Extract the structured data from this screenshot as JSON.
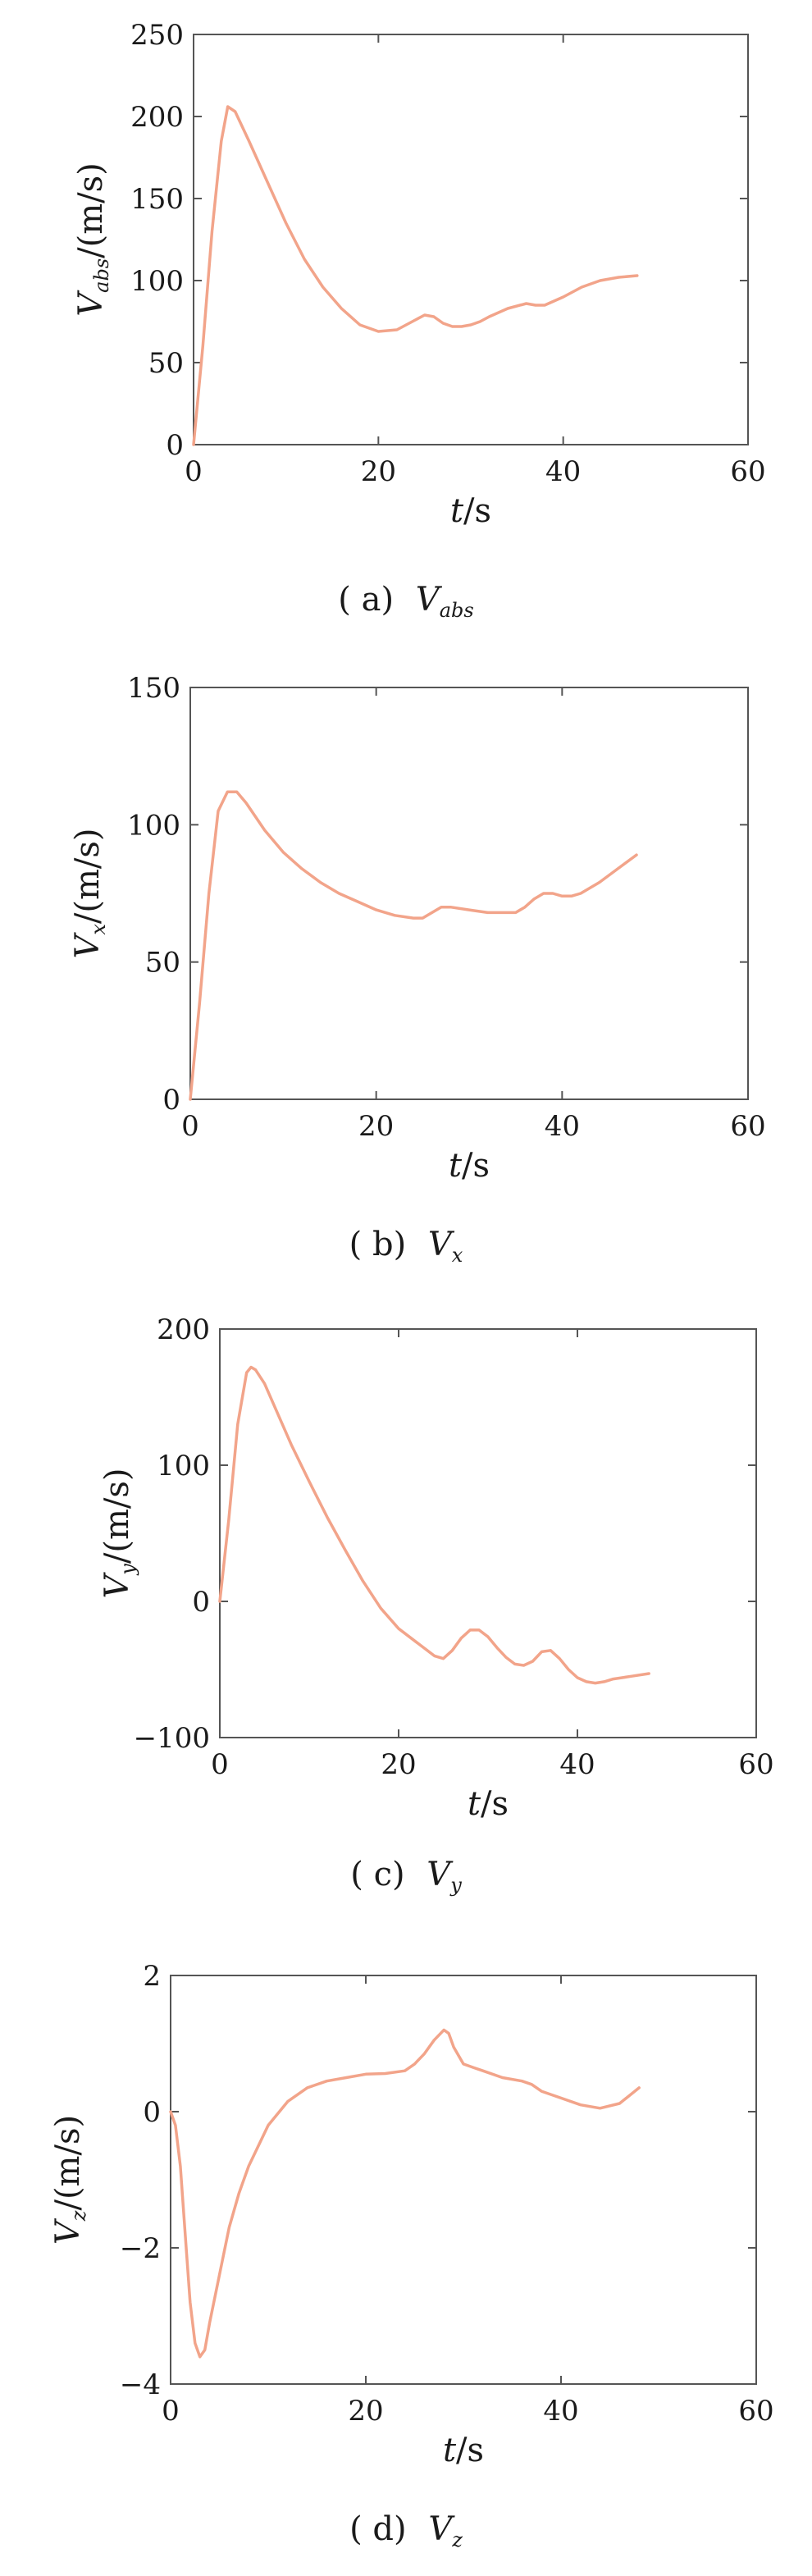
{
  "figure": {
    "line_color": "#f2a48a",
    "axis_color": "#555555"
  },
  "chart_data": [
    {
      "id": "a",
      "type": "line",
      "caption": {
        "label": "( a)",
        "var": "V",
        "sub": "abs"
      },
      "xlabel": {
        "var": "t",
        "unit": "/s"
      },
      "ylabel": {
        "var": "V",
        "sub": "abs",
        "unit": "/(m/s)"
      },
      "xlim": [
        0,
        60
      ],
      "ylim": [
        0,
        250
      ],
      "xticks": [
        0,
        20,
        40,
        60
      ],
      "yticks": [
        0,
        50,
        100,
        150,
        200,
        250
      ],
      "xticklabels": [
        "0",
        "20",
        "40",
        "60"
      ],
      "yticklabels": [
        "0",
        "50",
        "100",
        "150",
        "200",
        "250"
      ],
      "series": [
        {
          "x": [
            0,
            1,
            2,
            3,
            3.7,
            4.5,
            6,
            8,
            10,
            12,
            14,
            16,
            18,
            20,
            22,
            24,
            25,
            26,
            27,
            28,
            29,
            30,
            31,
            32,
            34,
            36,
            37,
            38,
            40,
            42,
            44,
            46,
            48
          ],
          "y": [
            0,
            60,
            130,
            185,
            206,
            203,
            185,
            160,
            135,
            113,
            96,
            83,
            73,
            69,
            70,
            76,
            79,
            78,
            74,
            72,
            72,
            73,
            75,
            78,
            83,
            86,
            85,
            85,
            90,
            96,
            100,
            102,
            103
          ]
        }
      ]
    },
    {
      "id": "b",
      "type": "line",
      "caption": {
        "label": "( b)",
        "var": "V",
        "sub": "x"
      },
      "xlabel": {
        "var": "t",
        "unit": "/s"
      },
      "ylabel": {
        "var": "V",
        "sub": "x",
        "unit": "/(m/s)"
      },
      "xlim": [
        0,
        60
      ],
      "ylim": [
        0,
        150
      ],
      "xticks": [
        0,
        20,
        40,
        60
      ],
      "yticks": [
        0,
        50,
        100,
        150
      ],
      "xticklabels": [
        "0",
        "20",
        "40",
        "60"
      ],
      "yticklabels": [
        "0",
        "50",
        "100",
        "150"
      ],
      "series": [
        {
          "x": [
            0,
            1,
            2,
            3,
            4,
            5,
            6,
            8,
            10,
            12,
            14,
            16,
            18,
            20,
            22,
            24,
            25,
            26,
            27,
            28,
            30,
            32,
            34,
            35,
            36,
            37,
            38,
            39,
            40,
            41,
            42,
            44,
            46,
            48
          ],
          "y": [
            0,
            35,
            75,
            105,
            112,
            112,
            108,
            98,
            90,
            84,
            79,
            75,
            72,
            69,
            67,
            66,
            66,
            68,
            70,
            70,
            69,
            68,
            68,
            68,
            70,
            73,
            75,
            75,
            74,
            74,
            75,
            79,
            84,
            89
          ]
        }
      ]
    },
    {
      "id": "c",
      "type": "line",
      "caption": {
        "label": "( c)",
        "var": "V",
        "sub": "y"
      },
      "xlabel": {
        "var": "t",
        "unit": "/s"
      },
      "ylabel": {
        "var": "V",
        "sub": "y",
        "unit": "/(m/s)"
      },
      "xlim": [
        0,
        60
      ],
      "ylim": [
        -100,
        200
      ],
      "xticks": [
        0,
        20,
        40,
        60
      ],
      "yticks": [
        -100,
        0,
        100,
        200
      ],
      "xticklabels": [
        "0",
        "20",
        "40",
        "60"
      ],
      "yticklabels": [
        "−100",
        "0",
        "100",
        "200"
      ],
      "series": [
        {
          "x": [
            0,
            1,
            2,
            3,
            3.5,
            4,
            5,
            6,
            8,
            10,
            12,
            14,
            16,
            18,
            20,
            22,
            24,
            25,
            26,
            27,
            28,
            29,
            30,
            31,
            32,
            33,
            34,
            35,
            36,
            37,
            38,
            39,
            40,
            41,
            42,
            43,
            44,
            45,
            46,
            48
          ],
          "y": [
            0,
            60,
            130,
            168,
            172,
            170,
            160,
            145,
            115,
            88,
            62,
            38,
            15,
            -5,
            -20,
            -30,
            -40,
            -42,
            -36,
            -27,
            -21,
            -21,
            -26,
            -34,
            -41,
            -46,
            -47,
            -44,
            -37,
            -36,
            -42,
            -50,
            -56,
            -59,
            -60,
            -59,
            -57,
            -56,
            -55,
            -53
          ]
        }
      ]
    },
    {
      "id": "d",
      "type": "line",
      "caption": {
        "label": "( d)",
        "var": "V",
        "sub": "z"
      },
      "xlabel": {
        "var": "t",
        "unit": "/s"
      },
      "ylabel": {
        "var": "V",
        "sub": "z",
        "unit": "/(m/s)"
      },
      "xlim": [
        0,
        60
      ],
      "ylim": [
        -4,
        2
      ],
      "xticks": [
        0,
        20,
        40,
        60
      ],
      "yticks": [
        -4,
        -2,
        0,
        2
      ],
      "xticklabels": [
        "0",
        "20",
        "40",
        "60"
      ],
      "yticklabels": [
        "−4",
        "−2",
        "0",
        "2"
      ],
      "series": [
        {
          "x": [
            0,
            0.5,
            1,
            1.5,
            2,
            2.5,
            3,
            3.5,
            4,
            5,
            6,
            7,
            8,
            10,
            12,
            14,
            16,
            18,
            20,
            22,
            24,
            25,
            26,
            27,
            28,
            28.5,
            29,
            30,
            31,
            32,
            34,
            36,
            37,
            38,
            40,
            42,
            44,
            46,
            48
          ],
          "y": [
            0,
            -0.2,
            -0.8,
            -1.8,
            -2.8,
            -3.4,
            -3.6,
            -3.5,
            -3.1,
            -2.4,
            -1.7,
            -1.2,
            -0.8,
            -0.2,
            0.15,
            0.35,
            0.45,
            0.5,
            0.55,
            0.56,
            0.6,
            0.7,
            0.85,
            1.05,
            1.2,
            1.15,
            0.95,
            0.7,
            0.65,
            0.6,
            0.5,
            0.45,
            0.4,
            0.3,
            0.2,
            0.1,
            0.05,
            0.12,
            0.35
          ]
        }
      ]
    }
  ]
}
